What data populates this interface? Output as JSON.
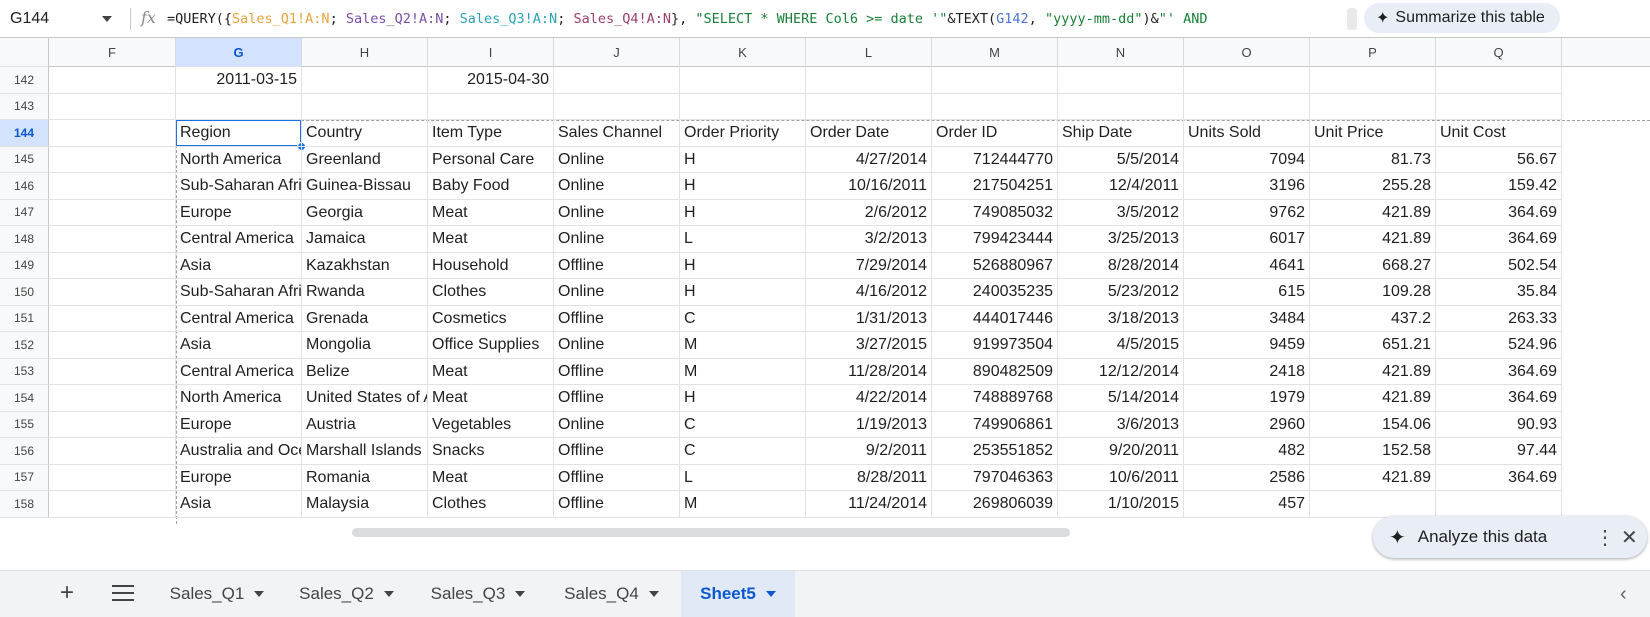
{
  "name_box": "G144",
  "formula": {
    "fx": "fx",
    "p0": "=QUERY({",
    "r1": "Sales_Q1!A:N",
    "s1": "; ",
    "r2": "Sales_Q2!A:N",
    "s2": "; ",
    "r3": "Sales_Q3!A:N",
    "s3": "; ",
    "r4": "Sales_Q4!A:N",
    "s4": "}, ",
    "str1": "\"SELECT * WHERE Col6 >= date '\"",
    "p5": "&TEXT(",
    "ref": "G142",
    "p6": ", ",
    "str2": "\"yyyy-mm-dd\"",
    "p7": ")&",
    "str3": "\"' AND"
  },
  "summarize_button": "Summarize this table",
  "columns": [
    "F",
    "G",
    "H",
    "I",
    "J",
    "K",
    "L",
    "M",
    "N",
    "O",
    "P",
    "Q"
  ],
  "rows": [
    {
      "n": "142",
      "cells": [
        "",
        "2011-03-15",
        "",
        "2015-04-30",
        "",
        "",
        "",
        "",
        "",
        "",
        "",
        ""
      ]
    },
    {
      "n": "143",
      "cells": [
        "",
        "",
        "",
        "",
        "",
        "",
        "",
        "",
        "",
        "",
        "",
        ""
      ]
    },
    {
      "n": "144",
      "cells": [
        "",
        "Region",
        "Country",
        "Item Type",
        "Sales Channel",
        "Order Priority",
        "Order Date",
        "Order ID",
        "Ship Date",
        "Units Sold",
        "Unit Price",
        "Unit Cost"
      ]
    },
    {
      "n": "145",
      "cells": [
        "",
        "North America",
        "Greenland",
        "Personal Care",
        "Online",
        "H",
        "4/27/2014",
        "712444770",
        "5/5/2014",
        "7094",
        "81.73",
        "56.67"
      ]
    },
    {
      "n": "146",
      "cells": [
        "",
        "Sub-Saharan Africa",
        "Guinea-Bissau",
        "Baby Food",
        "Online",
        "H",
        "10/16/2011",
        "217504251",
        "12/4/2011",
        "3196",
        "255.28",
        "159.42"
      ]
    },
    {
      "n": "147",
      "cells": [
        "",
        "Europe",
        "Georgia",
        "Meat",
        "Online",
        "H",
        "2/6/2012",
        "749085032",
        "3/5/2012",
        "9762",
        "421.89",
        "364.69"
      ]
    },
    {
      "n": "148",
      "cells": [
        "",
        "Central America",
        "Jamaica",
        "Meat",
        "Online",
        "L",
        "3/2/2013",
        "799423444",
        "3/25/2013",
        "6017",
        "421.89",
        "364.69"
      ]
    },
    {
      "n": "149",
      "cells": [
        "",
        "Asia",
        "Kazakhstan",
        "Household",
        "Offline",
        "H",
        "7/29/2014",
        "526880967",
        "8/28/2014",
        "4641",
        "668.27",
        "502.54"
      ]
    },
    {
      "n": "150",
      "cells": [
        "",
        "Sub-Saharan Africa",
        "Rwanda",
        "Clothes",
        "Online",
        "H",
        "4/16/2012",
        "240035235",
        "5/23/2012",
        "615",
        "109.28",
        "35.84"
      ]
    },
    {
      "n": "151",
      "cells": [
        "",
        "Central America",
        "Grenada",
        "Cosmetics",
        "Offline",
        "C",
        "1/31/2013",
        "444017446",
        "3/18/2013",
        "3484",
        "437.2",
        "263.33"
      ]
    },
    {
      "n": "152",
      "cells": [
        "",
        "Asia",
        "Mongolia",
        "Office Supplies",
        "Online",
        "M",
        "3/27/2015",
        "919973504",
        "4/5/2015",
        "9459",
        "651.21",
        "524.96"
      ]
    },
    {
      "n": "153",
      "cells": [
        "",
        "Central America",
        "Belize",
        "Meat",
        "Offline",
        "M",
        "11/28/2014",
        "890482509",
        "12/12/2014",
        "2418",
        "421.89",
        "364.69"
      ]
    },
    {
      "n": "154",
      "cells": [
        "",
        "North America",
        "United States of America",
        "Meat",
        "Offline",
        "H",
        "4/22/2014",
        "748889768",
        "5/14/2014",
        "1979",
        "421.89",
        "364.69"
      ]
    },
    {
      "n": "155",
      "cells": [
        "",
        "Europe",
        "Austria",
        "Vegetables",
        "Online",
        "C",
        "1/19/2013",
        "749906861",
        "3/6/2013",
        "2960",
        "154.06",
        "90.93"
      ]
    },
    {
      "n": "156",
      "cells": [
        "",
        "Australia and Oceania",
        "Marshall Islands",
        "Snacks",
        "Offline",
        "C",
        "9/2/2011",
        "253551852",
        "9/20/2011",
        "482",
        "152.58",
        "97.44"
      ]
    },
    {
      "n": "157",
      "cells": [
        "",
        "Europe",
        "Romania",
        "Meat",
        "Offline",
        "L",
        "8/28/2011",
        "797046363",
        "10/6/2011",
        "2586",
        "421.89",
        "364.69"
      ]
    },
    {
      "n": "158",
      "cells": [
        "",
        "Asia",
        "Malaysia",
        "Clothes",
        "Offline",
        "M",
        "11/24/2014",
        "269806039",
        "1/10/2015",
        "457",
        "",
        ""
      ]
    }
  ],
  "numeric_columns": [
    "L",
    "M",
    "N",
    "O",
    "P",
    "Q"
  ],
  "analyze_chip": "Analyze this data",
  "sheet_tabs": [
    {
      "label": "Sales_Q1",
      "active": false
    },
    {
      "label": "Sales_Q2",
      "active": false
    },
    {
      "label": "Sales_Q3",
      "active": false
    },
    {
      "label": "Sales_Q4",
      "active": false
    },
    {
      "label": "Sheet5",
      "active": true
    }
  ],
  "icons": {
    "add_sheet": "+",
    "sparkle": "✦",
    "more": "⋮",
    "close": "✕",
    "scroll_left": "‹"
  },
  "colors": {
    "accent": "#1a73e8",
    "selected_header_bg": "#d3e3fd",
    "active_tab_text": "#0b57d0"
  }
}
